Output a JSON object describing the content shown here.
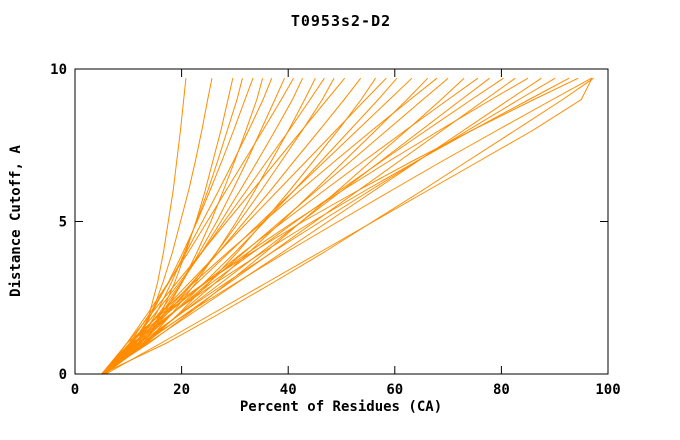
{
  "page": {
    "background": "#ffffff"
  },
  "chart_data": {
    "type": "line",
    "title": "T0953s2-D2",
    "xlabel": "Percent of Residues (CA)",
    "ylabel": "Distance Cutoff, A",
    "xlim": [
      0,
      100
    ],
    "ylim": [
      0,
      10
    ],
    "xticks": [
      0,
      20,
      40,
      60,
      80,
      100
    ],
    "yticks": [
      0,
      5,
      10
    ],
    "grid": false,
    "legend": "none",
    "line_color": "#ff8c00",
    "axis_color": "#000000",
    "y_levels": [
      0,
      1,
      2,
      3,
      4,
      5,
      6,
      7,
      8,
      9,
      9.7
    ],
    "series_x": [
      [
        5.2,
        12.0,
        14.0,
        15.5,
        16.6,
        17.5,
        18.4,
        19.1,
        19.8,
        20.4,
        20.8
      ],
      [
        5.5,
        11.5,
        14.4,
        16.5,
        18.3,
        19.8,
        21.3,
        22.6,
        23.8,
        24.9,
        25.7
      ],
      [
        5.0,
        13.0,
        16.2,
        18.7,
        20.8,
        22.7,
        24.4,
        25.9,
        27.4,
        28.7,
        29.6
      ],
      [
        5.3,
        11.8,
        15.3,
        18.1,
        20.6,
        22.8,
        24.9,
        26.8,
        28.6,
        30.4,
        31.4
      ],
      [
        5.0,
        10.8,
        14.4,
        17.5,
        20.3,
        22.9,
        25.3,
        27.6,
        29.8,
        31.9,
        33.4
      ],
      [
        5.6,
        12.8,
        16.8,
        20.1,
        22.9,
        25.5,
        27.8,
        30.0,
        32.1,
        34.1,
        35.2
      ],
      [
        5.0,
        10.2,
        14.1,
        17.6,
        20.9,
        23.9,
        26.9,
        29.8,
        32.6,
        35.3,
        36.9
      ],
      [
        5.2,
        12.0,
        16.3,
        20.1,
        23.4,
        26.6,
        29.5,
        32.3,
        34.9,
        37.5,
        39.3
      ],
      [
        5.0,
        9.7,
        13.7,
        17.5,
        21.3,
        24.8,
        28.3,
        31.8,
        35.3,
        38.7,
        41.0
      ],
      [
        5.4,
        11.2,
        15.8,
        19.9,
        23.8,
        27.4,
        30.9,
        34.3,
        37.6,
        40.8,
        42.7
      ],
      [
        5.0,
        13.2,
        18.3,
        22.7,
        26.6,
        30.3,
        33.7,
        36.9,
        40.1,
        43.1,
        45.1
      ],
      [
        5.5,
        10.4,
        15.1,
        19.6,
        23.9,
        28.0,
        32.1,
        36.1,
        40.2,
        44.1,
        46.8
      ],
      [
        5.0,
        12.1,
        17.4,
        22.2,
        26.6,
        30.8,
        34.9,
        38.8,
        42.7,
        46.4,
        48.6
      ],
      [
        5.2,
        9.7,
        14.4,
        19.1,
        23.8,
        28.5,
        33.2,
        37.9,
        42.6,
        47.3,
        50.6
      ],
      [
        5.0,
        11.3,
        16.8,
        22.0,
        27.0,
        31.8,
        36.6,
        41.2,
        45.9,
        50.5,
        53.6
      ],
      [
        5.6,
        13.4,
        19.6,
        25.2,
        30.5,
        35.4,
        40.2,
        44.8,
        49.4,
        53.7,
        56.4
      ],
      [
        5.0,
        10.5,
        16.0,
        21.5,
        27.0,
        32.5,
        38.0,
        43.5,
        49.0,
        54.5,
        58.4
      ],
      [
        5.3,
        12.2,
        18.4,
        24.3,
        30.1,
        35.6,
        41.0,
        46.3,
        51.6,
        56.9,
        60.4
      ],
      [
        5.0,
        11.0,
        17.0,
        23.0,
        29.0,
        35.0,
        41.0,
        47.0,
        53.0,
        59.0,
        63.2
      ],
      [
        5.4,
        12.9,
        19.8,
        26.4,
        32.7,
        38.8,
        44.8,
        50.6,
        56.5,
        62.3,
        66.2
      ],
      [
        5.0,
        10.2,
        16.1,
        22.3,
        28.7,
        35.4,
        42.1,
        48.9,
        55.8,
        62.9,
        67.9
      ],
      [
        5.5,
        11.7,
        18.4,
        25.1,
        31.8,
        38.5,
        45.2,
        51.9,
        58.6,
        65.3,
        70.0
      ],
      [
        5.0,
        13.8,
        21.5,
        28.7,
        35.8,
        42.5,
        49.2,
        55.7,
        62.3,
        68.7,
        73.0
      ],
      [
        5.2,
        10.8,
        17.4,
        24.4,
        31.6,
        39.1,
        46.6,
        54.3,
        62.1,
        70.0,
        75.6
      ],
      [
        5.0,
        12.5,
        20.0,
        27.5,
        35.0,
        42.5,
        50.0,
        57.5,
        65.0,
        72.5,
        77.8
      ],
      [
        5.6,
        11.2,
        18.3,
        25.7,
        33.5,
        41.4,
        49.5,
        57.7,
        66.0,
        74.4,
        80.4
      ],
      [
        5.0,
        13.0,
        21.0,
        29.0,
        37.0,
        45.0,
        53.0,
        61.0,
        69.0,
        77.0,
        82.6
      ],
      [
        5.3,
        10.2,
        17.0,
        24.6,
        32.6,
        41.1,
        50.0,
        59.1,
        68.5,
        78.1,
        85.0
      ],
      [
        5.0,
        13.5,
        22.0,
        30.5,
        39.0,
        47.5,
        56.0,
        64.5,
        73.0,
        81.5,
        87.5
      ],
      [
        5.5,
        12.0,
        20.0,
        28.4,
        37.1,
        46.1,
        55.2,
        64.4,
        73.8,
        83.3,
        90.1
      ],
      [
        5.0,
        10.7,
        18.2,
        26.5,
        35.3,
        44.6,
        54.3,
        64.3,
        74.6,
        85.2,
        92.7
      ],
      [
        5.2,
        12.5,
        21.2,
        30.3,
        39.7,
        49.4,
        59.2,
        69.1,
        79.3,
        89.6,
        96.9
      ],
      [
        5.0,
        17.0,
        27.3,
        37.2,
        46.8,
        55.9,
        65.0,
        73.8,
        82.7,
        91.5,
        97.3
      ],
      [
        5.4,
        9.7,
        16.4,
        24.4,
        33.3,
        42.8,
        52.9,
        63.5,
        74.6,
        86.1,
        94.4
      ],
      [
        5.8,
        16.0,
        26.0,
        36.0,
        46.0,
        56.0,
        66.0,
        76.0,
        86.0,
        95.0,
        97.0
      ]
    ]
  }
}
